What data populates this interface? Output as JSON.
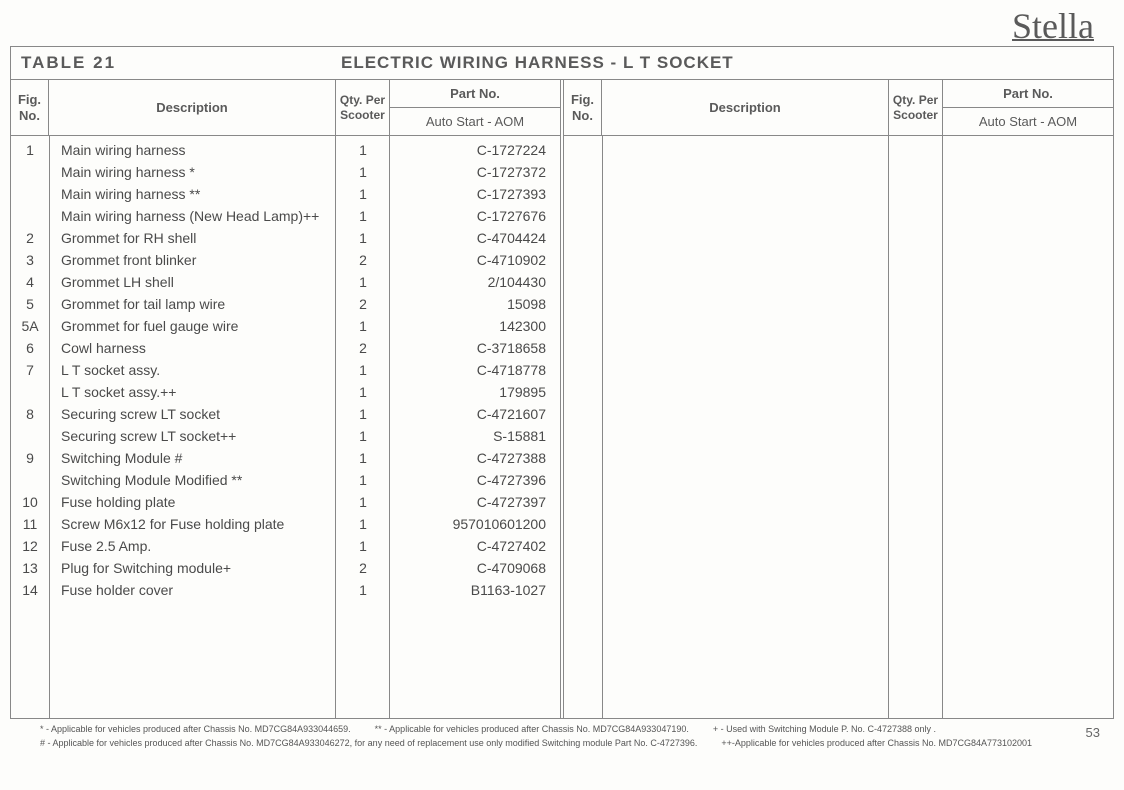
{
  "brand": "Stella",
  "table_number": "TABLE  21",
  "table_title": "ELECTRIC WIRING HARNESS - L T SOCKET",
  "headers": {
    "fig": "Fig.",
    "no": "No.",
    "description": "Description",
    "qty_per": "Qty. Per",
    "scooter": "Scooter",
    "part_no": "Part No.",
    "auto_start": "Auto Start - AOM"
  },
  "rows": [
    {
      "fig": "1",
      "desc": "Main wiring harness",
      "qty": "1",
      "part": "C-1727224"
    },
    {
      "fig": "",
      "desc": "Main wiring harness *",
      "qty": "1",
      "part": "C-1727372"
    },
    {
      "fig": "",
      "desc": "Main wiring harness **",
      "qty": "1",
      "part": "C-1727393"
    },
    {
      "fig": "",
      "desc": "Main wiring harness (New Head Lamp)++",
      "qty": "1",
      "part": "C-1727676"
    },
    {
      "fig": "2",
      "desc": "Grommet for RH shell",
      "qty": "1",
      "part": "C-4704424"
    },
    {
      "fig": "3",
      "desc": "Grommet front blinker",
      "qty": "2",
      "part": "C-4710902"
    },
    {
      "fig": "4",
      "desc": "Grommet LH shell",
      "qty": "1",
      "part": "2/104430"
    },
    {
      "fig": "5",
      "desc": "Grommet for tail lamp wire",
      "qty": "2",
      "part": "15098"
    },
    {
      "fig": "5A",
      "desc": "Grommet  for fuel gauge wire",
      "qty": "1",
      "part": "142300"
    },
    {
      "fig": "6",
      "desc": "Cowl harness",
      "qty": "2",
      "part": "C-3718658"
    },
    {
      "fig": "7",
      "desc": "L T socket assy.",
      "qty": "1",
      "part": "C-4718778"
    },
    {
      "fig": "",
      "desc": "L T socket assy.++",
      "qty": "1",
      "part": "179895"
    },
    {
      "fig": "8",
      "desc": "Securing screw LT socket",
      "qty": "1",
      "part": "C-4721607"
    },
    {
      "fig": "",
      "desc": "Securing screw LT socket++",
      "qty": "1",
      "part": "S-15881"
    },
    {
      "fig": "9",
      "desc": "Switching Module #",
      "qty": "1",
      "part": "C-4727388"
    },
    {
      "fig": "",
      "desc": "Switching Module Modified **",
      "qty": "1",
      "part": "C-4727396"
    },
    {
      "fig": "10",
      "desc": "Fuse holding plate",
      "qty": "1",
      "part": "C-4727397"
    },
    {
      "fig": "11",
      "desc": "Screw M6x12 for Fuse holding plate",
      "qty": "1",
      "part": "957010601200"
    },
    {
      "fig": "12",
      "desc": "Fuse 2.5 Amp.",
      "qty": "1",
      "part": "C-4727402"
    },
    {
      "fig": "13",
      "desc": "Plug for Switching module+",
      "qty": "2",
      "part": "C-4709068"
    },
    {
      "fig": "14",
      "desc": "Fuse holder cover",
      "qty": "1",
      "part": "B1163-1027"
    }
  ],
  "footnotes": {
    "n1": "* - Applicable for vehicles produced after Chassis No. MD7CG84A933044659.",
    "n2": "** - Applicable for vehicles produced after Chassis No. MD7CG84A933047190.",
    "n3": "+ - Used with Switching Module P. No. C-4727388 only .",
    "n4": "# - Applicable for vehicles produced after Chassis No. MD7CG84A933046272, for any need of replacement use only modified Switching module Part No. C-4727396.",
    "n5": "++-Applicable for vehicles produced after Chassis No. MD7CG84A773102001"
  },
  "page_number": "53"
}
